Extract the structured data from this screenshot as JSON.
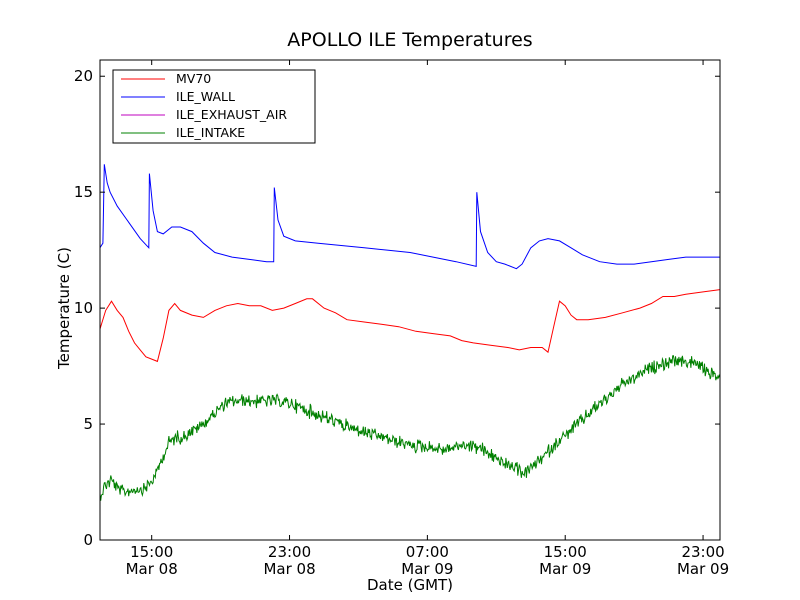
{
  "chart_data": {
    "type": "line",
    "title": "APOLLO ILE Temperatures",
    "xlabel": "Date (GMT)",
    "ylabel": "Temperature (C)",
    "xlim": [
      "2013-03-08T12:00",
      "2013-03-09T23:59"
    ],
    "ylim": [
      0,
      20.7
    ],
    "grid": false,
    "legend_position": "upper-left",
    "yticks": [
      0,
      5,
      10,
      15,
      20
    ],
    "xticks": [
      {
        "at": "2013-03-08T15:00",
        "label": [
          "15:00",
          "Mar 08"
        ]
      },
      {
        "at": "2013-03-08T23:00",
        "label": [
          "23:00",
          "Mar 08"
        ]
      },
      {
        "at": "2013-03-09T07:00",
        "label": [
          "07:00",
          "Mar 09"
        ]
      },
      {
        "at": "2013-03-09T15:00",
        "label": [
          "15:00",
          "Mar 09"
        ]
      },
      {
        "at": "2013-03-09T23:00",
        "label": [
          "23:00",
          "Mar 09"
        ]
      }
    ],
    "series": [
      {
        "name": "MV70",
        "color": "#ff0000",
        "points": [
          [
            "2013-03-08T12:00",
            9.1
          ],
          [
            "2013-03-08T12:20",
            9.9
          ],
          [
            "2013-03-08T12:40",
            10.3
          ],
          [
            "2013-03-08T13:00",
            9.9
          ],
          [
            "2013-03-08T13:20",
            9.6
          ],
          [
            "2013-03-08T13:40",
            9.0
          ],
          [
            "2013-03-08T14:00",
            8.5
          ],
          [
            "2013-03-08T14:20",
            8.2
          ],
          [
            "2013-03-08T14:40",
            7.9
          ],
          [
            "2013-03-08T15:00",
            7.8
          ],
          [
            "2013-03-08T15:20",
            7.7
          ],
          [
            "2013-03-08T15:40",
            8.7
          ],
          [
            "2013-03-08T16:00",
            9.9
          ],
          [
            "2013-03-08T16:20",
            10.2
          ],
          [
            "2013-03-08T16:40",
            9.9
          ],
          [
            "2013-03-08T17:20",
            9.7
          ],
          [
            "2013-03-08T18:00",
            9.6
          ],
          [
            "2013-03-08T18:40",
            9.9
          ],
          [
            "2013-03-08T19:20",
            10.1
          ],
          [
            "2013-03-08T20:00",
            10.2
          ],
          [
            "2013-03-08T20:40",
            10.1
          ],
          [
            "2013-03-08T21:20",
            10.1
          ],
          [
            "2013-03-08T22:00",
            9.9
          ],
          [
            "2013-03-08T22:40",
            10.0
          ],
          [
            "2013-03-08T23:20",
            10.2
          ],
          [
            "2013-03-09T00:00",
            10.4
          ],
          [
            "2013-03-09T00:20",
            10.4
          ],
          [
            "2013-03-09T01:00",
            10.0
          ],
          [
            "2013-03-09T01:40",
            9.8
          ],
          [
            "2013-03-09T02:20",
            9.5
          ],
          [
            "2013-03-09T03:20",
            9.4
          ],
          [
            "2013-03-09T04:20",
            9.3
          ],
          [
            "2013-03-09T05:20",
            9.2
          ],
          [
            "2013-03-09T06:20",
            9.0
          ],
          [
            "2013-03-09T07:20",
            8.9
          ],
          [
            "2013-03-09T08:20",
            8.8
          ],
          [
            "2013-03-09T09:00",
            8.6
          ],
          [
            "2013-03-09T09:40",
            8.5
          ],
          [
            "2013-03-09T10:40",
            8.4
          ],
          [
            "2013-03-09T11:40",
            8.3
          ],
          [
            "2013-03-09T12:20",
            8.2
          ],
          [
            "2013-03-09T13:00",
            8.3
          ],
          [
            "2013-03-09T13:40",
            8.3
          ],
          [
            "2013-03-09T14:00",
            8.1
          ],
          [
            "2013-03-09T14:20",
            9.2
          ],
          [
            "2013-03-09T14:40",
            10.3
          ],
          [
            "2013-03-09T15:00",
            10.1
          ],
          [
            "2013-03-09T15:20",
            9.7
          ],
          [
            "2013-03-09T15:40",
            9.5
          ],
          [
            "2013-03-09T16:20",
            9.5
          ],
          [
            "2013-03-09T17:20",
            9.6
          ],
          [
            "2013-03-09T18:20",
            9.8
          ],
          [
            "2013-03-09T19:20",
            10.0
          ],
          [
            "2013-03-09T20:00",
            10.2
          ],
          [
            "2013-03-09T20:40",
            10.5
          ],
          [
            "2013-03-09T21:20",
            10.5
          ],
          [
            "2013-03-09T22:00",
            10.6
          ],
          [
            "2013-03-09T23:00",
            10.7
          ],
          [
            "2013-03-09T23:59",
            10.8
          ]
        ]
      },
      {
        "name": "ILE_WALL",
        "color": "#0000ff",
        "points": [
          [
            "2013-03-08T12:00",
            12.6
          ],
          [
            "2013-03-08T12:05",
            12.7
          ],
          [
            "2013-03-08T12:10",
            12.8
          ],
          [
            "2013-03-08T12:15",
            16.2
          ],
          [
            "2013-03-08T12:25",
            15.4
          ],
          [
            "2013-03-08T12:35",
            15.0
          ],
          [
            "2013-03-08T13:00",
            14.4
          ],
          [
            "2013-03-08T13:40",
            13.7
          ],
          [
            "2013-03-08T14:20",
            13.0
          ],
          [
            "2013-03-08T14:50",
            12.6
          ],
          [
            "2013-03-08T14:52",
            15.8
          ],
          [
            "2013-03-08T15:05",
            14.2
          ],
          [
            "2013-03-08T15:20",
            13.3
          ],
          [
            "2013-03-08T15:40",
            13.2
          ],
          [
            "2013-03-08T16:10",
            13.5
          ],
          [
            "2013-03-08T16:40",
            13.5
          ],
          [
            "2013-03-08T17:20",
            13.3
          ],
          [
            "2013-03-08T18:00",
            12.8
          ],
          [
            "2013-03-08T18:40",
            12.4
          ],
          [
            "2013-03-08T19:40",
            12.2
          ],
          [
            "2013-03-08T20:40",
            12.1
          ],
          [
            "2013-03-08T21:40",
            12.0
          ],
          [
            "2013-03-08T22:05",
            12.0
          ],
          [
            "2013-03-08T22:07",
            15.2
          ],
          [
            "2013-03-08T22:20",
            13.8
          ],
          [
            "2013-03-08T22:40",
            13.1
          ],
          [
            "2013-03-08T23:20",
            12.9
          ],
          [
            "2013-03-09T00:40",
            12.8
          ],
          [
            "2013-03-09T02:00",
            12.7
          ],
          [
            "2013-03-09T03:20",
            12.6
          ],
          [
            "2013-03-09T04:40",
            12.5
          ],
          [
            "2013-03-09T06:00",
            12.4
          ],
          [
            "2013-03-09T07:20",
            12.2
          ],
          [
            "2013-03-09T08:40",
            12.0
          ],
          [
            "2013-03-09T09:50",
            11.8
          ],
          [
            "2013-03-09T09:52",
            15.0
          ],
          [
            "2013-03-09T10:05",
            13.3
          ],
          [
            "2013-03-09T10:30",
            12.4
          ],
          [
            "2013-03-09T11:00",
            12.0
          ],
          [
            "2013-03-09T11:30",
            11.9
          ],
          [
            "2013-03-09T12:10",
            11.7
          ],
          [
            "2013-03-09T12:30",
            11.9
          ],
          [
            "2013-03-09T13:00",
            12.6
          ],
          [
            "2013-03-09T13:30",
            12.9
          ],
          [
            "2013-03-09T14:00",
            13.0
          ],
          [
            "2013-03-09T14:40",
            12.9
          ],
          [
            "2013-03-09T15:20",
            12.6
          ],
          [
            "2013-03-09T16:00",
            12.3
          ],
          [
            "2013-03-09T17:00",
            12.0
          ],
          [
            "2013-03-09T18:00",
            11.9
          ],
          [
            "2013-03-09T19:00",
            11.9
          ],
          [
            "2013-03-09T20:00",
            12.0
          ],
          [
            "2013-03-09T21:00",
            12.1
          ],
          [
            "2013-03-09T22:00",
            12.2
          ],
          [
            "2013-03-09T23:00",
            12.2
          ],
          [
            "2013-03-09T23:59",
            12.2
          ]
        ]
      },
      {
        "name": "ILE_EXHAUST_AIR",
        "color": "#bf00bf",
        "points": []
      },
      {
        "name": "ILE_INTAKE",
        "color": "#008000",
        "noisy": true,
        "points": [
          [
            "2013-03-08T12:00",
            1.9
          ],
          [
            "2013-03-08T12:20",
            2.4
          ],
          [
            "2013-03-08T12:40",
            2.6
          ],
          [
            "2013-03-08T13:00",
            2.2
          ],
          [
            "2013-03-08T13:20",
            2.1
          ],
          [
            "2013-03-08T13:40",
            2.1
          ],
          [
            "2013-03-08T14:00",
            2.2
          ],
          [
            "2013-03-08T14:20",
            2.2
          ],
          [
            "2013-03-08T14:40",
            2.3
          ],
          [
            "2013-03-08T15:00",
            2.5
          ],
          [
            "2013-03-08T15:20",
            3.0
          ],
          [
            "2013-03-08T15:40",
            3.6
          ],
          [
            "2013-03-08T16:00",
            4.2
          ],
          [
            "2013-03-08T16:20",
            4.4
          ],
          [
            "2013-03-08T16:40",
            4.4
          ],
          [
            "2013-03-08T17:20",
            4.7
          ],
          [
            "2013-03-08T18:00",
            5.0
          ],
          [
            "2013-03-08T18:40",
            5.5
          ],
          [
            "2013-03-08T19:20",
            5.9
          ],
          [
            "2013-03-08T20:00",
            6.0
          ],
          [
            "2013-03-08T21:00",
            6.0
          ],
          [
            "2013-03-08T22:00",
            6.0
          ],
          [
            "2013-03-08T23:00",
            5.9
          ],
          [
            "2013-03-09T00:00",
            5.6
          ],
          [
            "2013-03-09T01:00",
            5.3
          ],
          [
            "2013-03-09T02:00",
            5.0
          ],
          [
            "2013-03-09T03:00",
            4.7
          ],
          [
            "2013-03-09T04:00",
            4.5
          ],
          [
            "2013-03-09T05:00",
            4.3
          ],
          [
            "2013-03-09T06:00",
            4.1
          ],
          [
            "2013-03-09T07:00",
            4.0
          ],
          [
            "2013-03-09T08:00",
            3.9
          ],
          [
            "2013-03-09T09:00",
            4.1
          ],
          [
            "2013-03-09T10:00",
            4.0
          ],
          [
            "2013-03-09T11:00",
            3.5
          ],
          [
            "2013-03-09T12:00",
            3.1
          ],
          [
            "2013-03-09T12:40",
            2.9
          ],
          [
            "2013-03-09T13:20",
            3.3
          ],
          [
            "2013-03-09T14:00",
            3.8
          ],
          [
            "2013-03-09T14:40",
            4.3
          ],
          [
            "2013-03-09T15:20",
            4.7
          ],
          [
            "2013-03-09T16:00",
            5.2
          ],
          [
            "2013-03-09T17:00",
            5.9
          ],
          [
            "2013-03-09T18:00",
            6.5
          ],
          [
            "2013-03-09T19:00",
            7.0
          ],
          [
            "2013-03-09T20:00",
            7.4
          ],
          [
            "2013-03-09T21:00",
            7.7
          ],
          [
            "2013-03-09T22:00",
            7.7
          ],
          [
            "2013-03-09T22:40",
            7.6
          ],
          [
            "2013-03-09T23:20",
            7.2
          ],
          [
            "2013-03-09T23:59",
            7.0
          ]
        ]
      }
    ]
  }
}
